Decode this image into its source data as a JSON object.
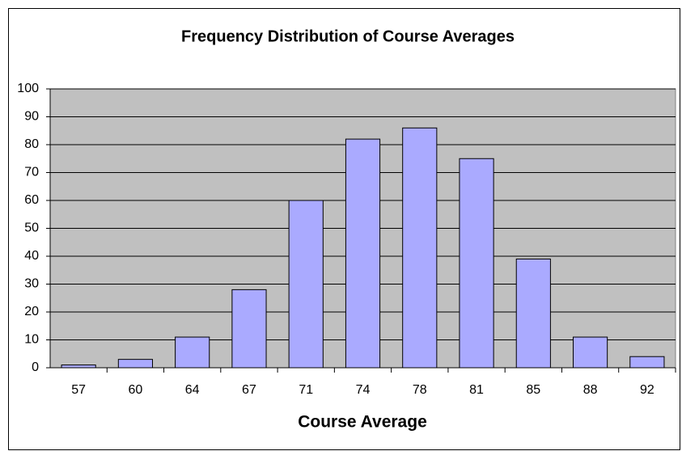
{
  "chart_data": {
    "type": "bar",
    "title": "Frequency Distribution of Course Averages",
    "x_label": "Course Average",
    "categories": [
      "57",
      "60",
      "64",
      "67",
      "71",
      "74",
      "78",
      "81",
      "85",
      "88",
      "92"
    ],
    "values": [
      1,
      3,
      11,
      28,
      60,
      82,
      86,
      75,
      39,
      11,
      4
    ],
    "color": "#aaaaff",
    "ylim": [
      0,
      100
    ],
    "yticks": [
      0,
      10,
      20,
      30,
      40,
      50,
      60,
      70,
      80,
      90,
      100
    ],
    "grid": true
  }
}
